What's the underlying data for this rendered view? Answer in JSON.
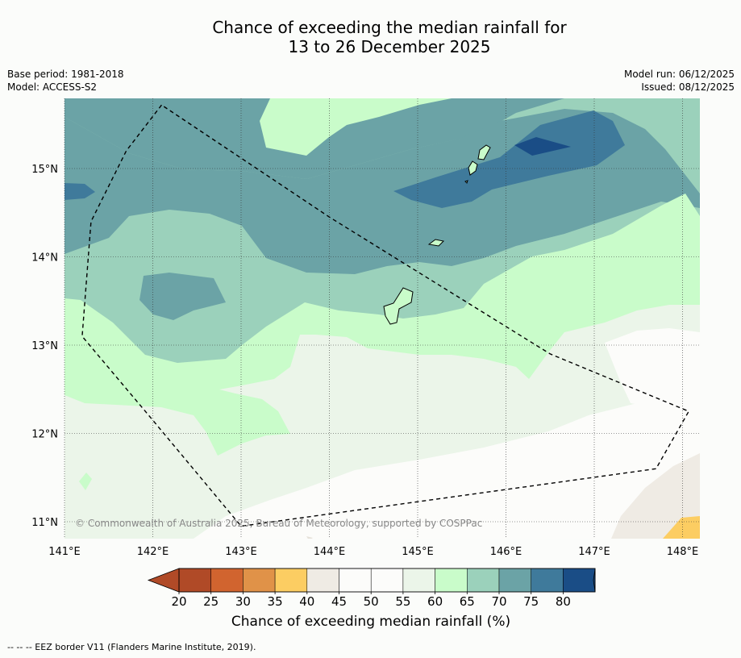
{
  "title": {
    "line1": "Chance of exceeding the median rainfall for",
    "line2": "13 to 26 December 2025"
  },
  "meta": {
    "base_period": "Base period: 1981-2018",
    "model": "Model: ACCESS-S2",
    "model_run": "Model run: 06/12/2025",
    "issued": "Issued: 08/12/2025"
  },
  "map": {
    "copyright": "© Commonwealth of Australia 2025, Bureau of Meteorology, supported by COSPPac",
    "lat_labels": [
      "15°N",
      "14°N",
      "13°N",
      "12°N",
      "11°N"
    ],
    "lat_values": [
      15,
      14,
      13,
      12,
      11
    ],
    "lon_labels": [
      "141°E",
      "142°E",
      "143°E",
      "144°E",
      "145°E",
      "146°E",
      "147°E",
      "148°E"
    ],
    "lon_values": [
      141,
      142,
      143,
      144,
      145,
      146,
      147,
      148
    ],
    "lon_range": [
      141,
      148.2
    ],
    "lat_range": [
      10.8,
      15.8
    ],
    "eez_border": [
      [
        142.1,
        15.72
      ],
      [
        141.7,
        15.2
      ],
      [
        141.3,
        14.4
      ],
      [
        141.2,
        13.1
      ],
      [
        142.0,
        12.15
      ],
      [
        143.0,
        10.95
      ],
      [
        147.7,
        11.6
      ],
      [
        148.07,
        12.25
      ],
      [
        146.5,
        12.9
      ],
      [
        144.0,
        14.45
      ]
    ]
  },
  "colorbar": {
    "title": "Chance of exceeding median rainfall (%)",
    "ticks": [
      "20",
      "25",
      "30",
      "35",
      "40",
      "45",
      "50",
      "55",
      "60",
      "65",
      "70",
      "75",
      "80"
    ],
    "colors": [
      "#b04a27",
      "#d1642f",
      "#e09248",
      "#fccd62",
      "#efebe4",
      "#fcfcfa",
      "#fcfcfa",
      "#ebf5e9",
      "#c9fcca",
      "#9bd1bb",
      "#6ba3a6",
      "#3f7a9b",
      "#1a4d86"
    ],
    "under_color": "#b04a27",
    "over_color": "#1a4d86"
  },
  "footnote": "--  --  -- EEZ border V11 (Flanders Marine Institute, 2019)."
}
